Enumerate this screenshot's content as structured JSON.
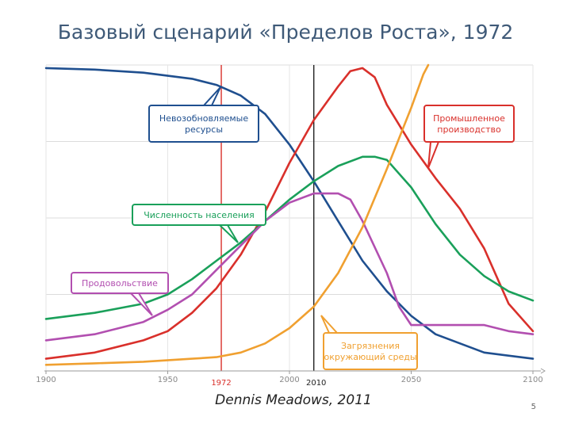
{
  "slide": {
    "title": "Базовый сценарий «Пределов Роста», 1972",
    "credit": "Dennis Meadows, 2011",
    "page_number": "5"
  },
  "chart_data": {
    "type": "line",
    "title": "Базовый сценарий «Пределов Роста», 1972",
    "xlabel": "",
    "ylabel": "",
    "xlim": [
      1900,
      2100
    ],
    "ylim": [
      0,
      1
    ],
    "grid": true,
    "x_ticks": [
      "1900",
      "1950",
      "2000",
      "2050",
      "2100"
    ],
    "markers": [
      {
        "x": 1972,
        "label": "1972",
        "color": "#d9302b"
      },
      {
        "x": 2010,
        "label": "2010",
        "color": "#222222"
      }
    ],
    "series": [
      {
        "name": "Невозобновляемые ресурсы",
        "color": "#1f4f8f",
        "points": [
          [
            1900,
            0.99
          ],
          [
            1920,
            0.985
          ],
          [
            1940,
            0.975
          ],
          [
            1960,
            0.955
          ],
          [
            1970,
            0.935
          ],
          [
            1980,
            0.9
          ],
          [
            1990,
            0.84
          ],
          [
            2000,
            0.74
          ],
          [
            2010,
            0.62
          ],
          [
            2020,
            0.49
          ],
          [
            2030,
            0.36
          ],
          [
            2040,
            0.26
          ],
          [
            2050,
            0.18
          ],
          [
            2060,
            0.12
          ],
          [
            2080,
            0.06
          ],
          [
            2100,
            0.04
          ]
        ]
      },
      {
        "name": "Промышленное производство",
        "color": "#d9302b",
        "points": [
          [
            1900,
            0.04
          ],
          [
            1920,
            0.06
          ],
          [
            1940,
            0.1
          ],
          [
            1950,
            0.13
          ],
          [
            1960,
            0.19
          ],
          [
            1970,
            0.27
          ],
          [
            1980,
            0.38
          ],
          [
            1990,
            0.52
          ],
          [
            2000,
            0.68
          ],
          [
            2010,
            0.82
          ],
          [
            2020,
            0.93
          ],
          [
            2025,
            0.98
          ],
          [
            2030,
            0.99
          ],
          [
            2035,
            0.96
          ],
          [
            2040,
            0.87
          ],
          [
            2050,
            0.74
          ],
          [
            2060,
            0.63
          ],
          [
            2070,
            0.53
          ],
          [
            2080,
            0.4
          ],
          [
            2090,
            0.22
          ],
          [
            2100,
            0.13
          ]
        ]
      },
      {
        "name": "Численность населения",
        "color": "#1aa05a",
        "points": [
          [
            1900,
            0.17
          ],
          [
            1920,
            0.19
          ],
          [
            1940,
            0.22
          ],
          [
            1950,
            0.25
          ],
          [
            1960,
            0.3
          ],
          [
            1970,
            0.36
          ],
          [
            1980,
            0.42
          ],
          [
            1990,
            0.49
          ],
          [
            2000,
            0.56
          ],
          [
            2010,
            0.62
          ],
          [
            2020,
            0.67
          ],
          [
            2030,
            0.7
          ],
          [
            2035,
            0.7
          ],
          [
            2040,
            0.69
          ],
          [
            2050,
            0.6
          ],
          [
            2060,
            0.48
          ],
          [
            2070,
            0.38
          ],
          [
            2080,
            0.31
          ],
          [
            2090,
            0.26
          ],
          [
            2100,
            0.23
          ]
        ]
      },
      {
        "name": "Продовольствие",
        "color": "#b24fb0",
        "points": [
          [
            1900,
            0.1
          ],
          [
            1920,
            0.12
          ],
          [
            1940,
            0.16
          ],
          [
            1950,
            0.2
          ],
          [
            1960,
            0.25
          ],
          [
            1970,
            0.33
          ],
          [
            1980,
            0.41
          ],
          [
            1990,
            0.49
          ],
          [
            2000,
            0.55
          ],
          [
            2010,
            0.58
          ],
          [
            2015,
            0.58
          ],
          [
            2020,
            0.58
          ],
          [
            2025,
            0.56
          ],
          [
            2030,
            0.49
          ],
          [
            2040,
            0.32
          ],
          [
            2045,
            0.21
          ],
          [
            2050,
            0.15
          ],
          [
            2060,
            0.15
          ],
          [
            2070,
            0.15
          ],
          [
            2080,
            0.15
          ],
          [
            2090,
            0.13
          ],
          [
            2100,
            0.12
          ]
        ]
      },
      {
        "name": "Загрязнения окружающий среды",
        "color": "#f0a030",
        "points": [
          [
            1900,
            0.02
          ],
          [
            1920,
            0.025
          ],
          [
            1940,
            0.03
          ],
          [
            1960,
            0.04
          ],
          [
            1970,
            0.045
          ],
          [
            1980,
            0.06
          ],
          [
            1990,
            0.09
          ],
          [
            2000,
            0.14
          ],
          [
            2010,
            0.21
          ],
          [
            2020,
            0.32
          ],
          [
            2030,
            0.47
          ],
          [
            2040,
            0.66
          ],
          [
            2050,
            0.86
          ],
          [
            2055,
            0.97
          ],
          [
            2057,
            1.0
          ]
        ]
      }
    ],
    "annotations": [
      {
        "text_lines": [
          "Невозобновляемые",
          "ресурсы"
        ],
        "series": 0
      },
      {
        "text_lines": [
          "Промышленное",
          "производство"
        ],
        "series": 1
      },
      {
        "text_lines": [
          "Численность населения"
        ],
        "series": 2
      },
      {
        "text_lines": [
          "Продовольствие"
        ],
        "series": 3
      },
      {
        "text_lines": [
          "Загрязнения",
          "окружающий среды"
        ],
        "series": 4
      }
    ]
  }
}
